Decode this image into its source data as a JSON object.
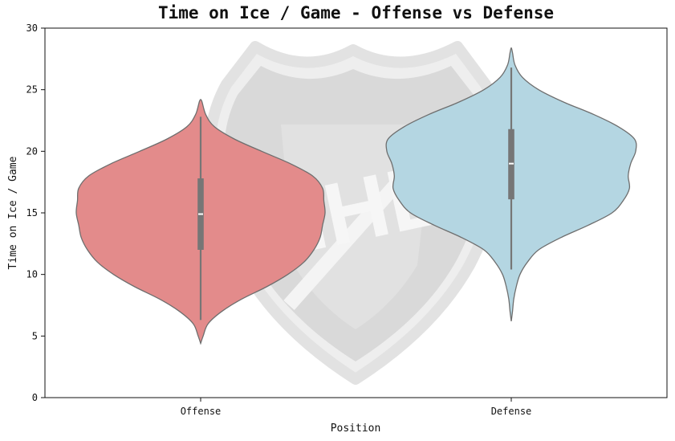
{
  "chart_data": {
    "type": "violin",
    "title": "Time on Ice / Game - Offense vs Defense",
    "xlabel": "Position",
    "ylabel": "Time on Ice / Game",
    "categories": [
      "Offense",
      "Defense"
    ],
    "ylim": [
      0,
      30
    ],
    "yticks": [
      0,
      5,
      10,
      15,
      20,
      25,
      30
    ],
    "grid": false,
    "series": [
      {
        "name": "Offense",
        "color": "#e38b8b",
        "min": 4.4,
        "max": 24.2,
        "whisker_low": 6.3,
        "whisker_high": 22.8,
        "q1": 12.0,
        "median": 14.9,
        "q3": 17.8,
        "density": [
          [
            4.4,
            0.0
          ],
          [
            5.0,
            0.02
          ],
          [
            6.0,
            0.06
          ],
          [
            7.0,
            0.17
          ],
          [
            8.0,
            0.33
          ],
          [
            9.0,
            0.53
          ],
          [
            10.0,
            0.7
          ],
          [
            11.0,
            0.83
          ],
          [
            12.0,
            0.91
          ],
          [
            13.0,
            0.96
          ],
          [
            14.0,
            0.98
          ],
          [
            15.0,
            1.0
          ],
          [
            16.0,
            0.99
          ],
          [
            17.0,
            0.98
          ],
          [
            18.0,
            0.9
          ],
          [
            19.0,
            0.72
          ],
          [
            20.0,
            0.49
          ],
          [
            21.0,
            0.27
          ],
          [
            22.0,
            0.11
          ],
          [
            23.0,
            0.04
          ],
          [
            24.2,
            0.0
          ]
        ]
      },
      {
        "name": "Defense",
        "color": "#b4d6e2",
        "min": 6.2,
        "max": 28.4,
        "whisker_low": 10.4,
        "whisker_high": 26.8,
        "q1": 16.1,
        "median": 19.0,
        "q3": 21.8,
        "density": [
          [
            6.2,
            0.0
          ],
          [
            7.0,
            0.01
          ],
          [
            8.0,
            0.02
          ],
          [
            9.0,
            0.04
          ],
          [
            10.0,
            0.07
          ],
          [
            11.0,
            0.13
          ],
          [
            12.0,
            0.22
          ],
          [
            13.0,
            0.4
          ],
          [
            14.0,
            0.62
          ],
          [
            15.0,
            0.81
          ],
          [
            16.0,
            0.9
          ],
          [
            17.0,
            0.95
          ],
          [
            18.0,
            0.94
          ],
          [
            19.0,
            0.96
          ],
          [
            20.0,
            1.0
          ],
          [
            21.0,
            0.99
          ],
          [
            22.0,
            0.86
          ],
          [
            23.0,
            0.66
          ],
          [
            24.0,
            0.42
          ],
          [
            25.0,
            0.22
          ],
          [
            26.0,
            0.09
          ],
          [
            27.0,
            0.03
          ],
          [
            28.0,
            0.01
          ],
          [
            28.4,
            0.0
          ]
        ]
      }
    ]
  },
  "colors": {
    "violin_edge": "#6e6e6e",
    "box": "#767676",
    "median": "#ffffff",
    "axis": "#111111"
  }
}
